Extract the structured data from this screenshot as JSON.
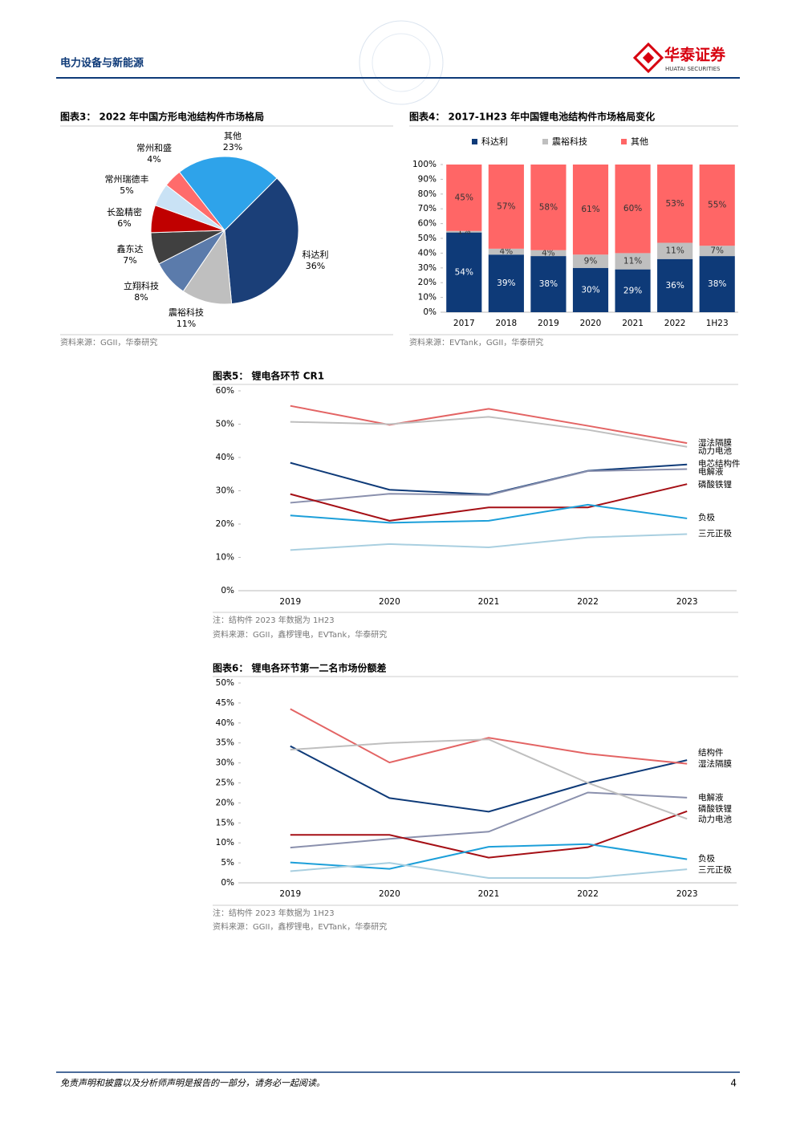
{
  "header": {
    "section": "电力设备与新能源",
    "logo_cn": "华泰证券",
    "logo_en": "HUATAI SECURITIES"
  },
  "chart_data": [
    {
      "type": "pie",
      "title": "图表3： 2022 年中国方形电池结构件市场格局",
      "categories": [
        "科达利",
        "震裕科技",
        "立翔科技",
        "鑫东达",
        "长盈精密",
        "常州瑞德丰",
        "常州和盛",
        "其他"
      ],
      "values": [
        36,
        11,
        8,
        7,
        6,
        5,
        4,
        23
      ],
      "value_labels": [
        "36%",
        "11%",
        "8%",
        "7%",
        "6%",
        "5%",
        "4%",
        "23%"
      ],
      "colors": [
        "#1b3f78",
        "#bfbfbf",
        "#5b7bab",
        "#404040",
        "#c00000",
        "#c9e2f5",
        "#ff6b6b",
        "#2ea3ea"
      ],
      "source": "资料来源：GGII，华泰研究"
    },
    {
      "type": "bar",
      "stacked": true,
      "title": "图表4： 2017-1H23 年中国锂电池结构件市场格局变化",
      "categories": [
        "2017",
        "2018",
        "2019",
        "2020",
        "2021",
        "2022",
        "1H23"
      ],
      "series": [
        {
          "name": "科达利",
          "color": "#0e3a78",
          "values": [
            54,
            39,
            38,
            30,
            29,
            36,
            38
          ],
          "value_labels": [
            "54%",
            "39%",
            "38%",
            "30%",
            "29%",
            "36%",
            "38%"
          ]
        },
        {
          "name": "震裕科技",
          "color": "#bfbfbf",
          "values": [
            1,
            4,
            4,
            9,
            11,
            11,
            7
          ],
          "value_labels": [
            "1%",
            "4%",
            "4%",
            "9%",
            "11%",
            "11%",
            "7%"
          ]
        },
        {
          "name": "其他",
          "color": "#ff6666",
          "values": [
            45,
            57,
            58,
            61,
            60,
            53,
            55
          ],
          "value_labels": [
            "45%",
            "57%",
            "58%",
            "61%",
            "60%",
            "53%",
            "55%"
          ]
        }
      ],
      "ylim": [
        0,
        100
      ],
      "yticks": [
        {
          "value": 0,
          "label": "0%"
        },
        {
          "value": 10,
          "label": "10%"
        },
        {
          "value": 20,
          "label": "20%"
        },
        {
          "value": 30,
          "label": "30%"
        },
        {
          "value": 40,
          "label": "40%"
        },
        {
          "value": 50,
          "label": "50%"
        },
        {
          "value": 60,
          "label": "60%"
        },
        {
          "value": 70,
          "label": "70%"
        },
        {
          "value": 80,
          "label": "80%"
        },
        {
          "value": 90,
          "label": "90%"
        },
        {
          "value": 100,
          "label": "100%"
        }
      ],
      "legend": "top",
      "source": "资料来源：EVTank，GGII，华泰研究"
    },
    {
      "type": "line",
      "title": "图表5： 锂电各环节 CR1",
      "categories": [
        "2019",
        "2020",
        "2021",
        "2022",
        "2023"
      ],
      "series": [
        {
          "name": "湿法隔膜",
          "color": "#e36464",
          "values": [
            55.5,
            49.8,
            54.6,
            49.5,
            44.3
          ]
        },
        {
          "name": "动力电池",
          "color": "#bfbfbf",
          "values": [
            50.7,
            50.0,
            52.2,
            48.3,
            43.2
          ]
        },
        {
          "name": "电芯结构件",
          "color": "#0e3a78",
          "values": [
            38.4,
            30.3,
            28.9,
            36.0,
            37.9
          ]
        },
        {
          "name": "电解液",
          "color": "#8a90ad",
          "values": [
            26.4,
            29.1,
            28.7,
            35.9,
            36.5
          ]
        },
        {
          "name": "磷酸铁锂",
          "color": "#a50f15",
          "values": [
            29.0,
            21.0,
            25.0,
            25.0,
            32.0
          ]
        },
        {
          "name": "负极",
          "color": "#1c9fd9",
          "values": [
            22.6,
            20.4,
            21.0,
            25.8,
            21.7
          ]
        },
        {
          "name": "三元正极",
          "color": "#a9cfe0",
          "values": [
            12.2,
            14.0,
            13.0,
            16.0,
            17.0
          ]
        }
      ],
      "ylim": [
        0,
        60
      ],
      "yticks": [
        {
          "value": 0,
          "label": "0%"
        },
        {
          "value": 10,
          "label": "10%"
        },
        {
          "value": 20,
          "label": "20%"
        },
        {
          "value": 30,
          "label": "30%"
        },
        {
          "value": 40,
          "label": "40%"
        },
        {
          "value": 50,
          "label": "50%"
        },
        {
          "value": 60,
          "label": "60%"
        }
      ],
      "note": "注：结构件 2023 年数据为 1H23",
      "source": "资料来源：GGII，鑫椤锂电，EVTank，华泰研究"
    },
    {
      "type": "line",
      "title": "图表6： 锂电各环节第一二名市场份额差",
      "categories": [
        "2019",
        "2020",
        "2021",
        "2022",
        "2023"
      ],
      "series": [
        {
          "name": "结构件",
          "color": "#0e3a78",
          "values": [
            34.2,
            21.2,
            17.8,
            25.0,
            30.7
          ]
        },
        {
          "name": "湿法隔膜",
          "color": "#e36464",
          "values": [
            43.5,
            30.1,
            36.3,
            32.3,
            29.8
          ]
        },
        {
          "name": "电解液",
          "color": "#8a90ad",
          "values": [
            8.8,
            11.0,
            12.8,
            22.6,
            21.3
          ]
        },
        {
          "name": "磷酸铁锂",
          "color": "#a50f15",
          "values": [
            12.0,
            12.0,
            6.3,
            8.9,
            17.9
          ]
        },
        {
          "name": "动力电池",
          "color": "#bfbfbf",
          "values": [
            33.3,
            35.0,
            35.9,
            25.0,
            16.0
          ]
        },
        {
          "name": "负极",
          "color": "#1c9fd9",
          "values": [
            5.1,
            3.5,
            9.0,
            9.7,
            5.9
          ]
        },
        {
          "name": "三元正极",
          "color": "#a9cfe0",
          "values": [
            2.9,
            5.0,
            1.2,
            1.2,
            3.4
          ]
        }
      ],
      "ylim": [
        0,
        50
      ],
      "yticks": [
        {
          "value": 0,
          "label": "0%"
        },
        {
          "value": 5,
          "label": "5%"
        },
        {
          "value": 10,
          "label": "10%"
        },
        {
          "value": 15,
          "label": "15%"
        },
        {
          "value": 20,
          "label": "20%"
        },
        {
          "value": 25,
          "label": "25%"
        },
        {
          "value": 30,
          "label": "30%"
        },
        {
          "value": 35,
          "label": "35%"
        },
        {
          "value": 40,
          "label": "40%"
        },
        {
          "value": 45,
          "label": "45%"
        },
        {
          "value": 50,
          "label": "50%"
        }
      ],
      "note": "注：结构件 2023 年数据为 1H23",
      "source": "资料来源：GGII，鑫椤锂电，EVTank，华泰研究"
    }
  ],
  "footer": {
    "disclaimer": "免责声明和披露以及分析师声明是报告的一部分，请务必一起阅读。",
    "page": "4"
  }
}
